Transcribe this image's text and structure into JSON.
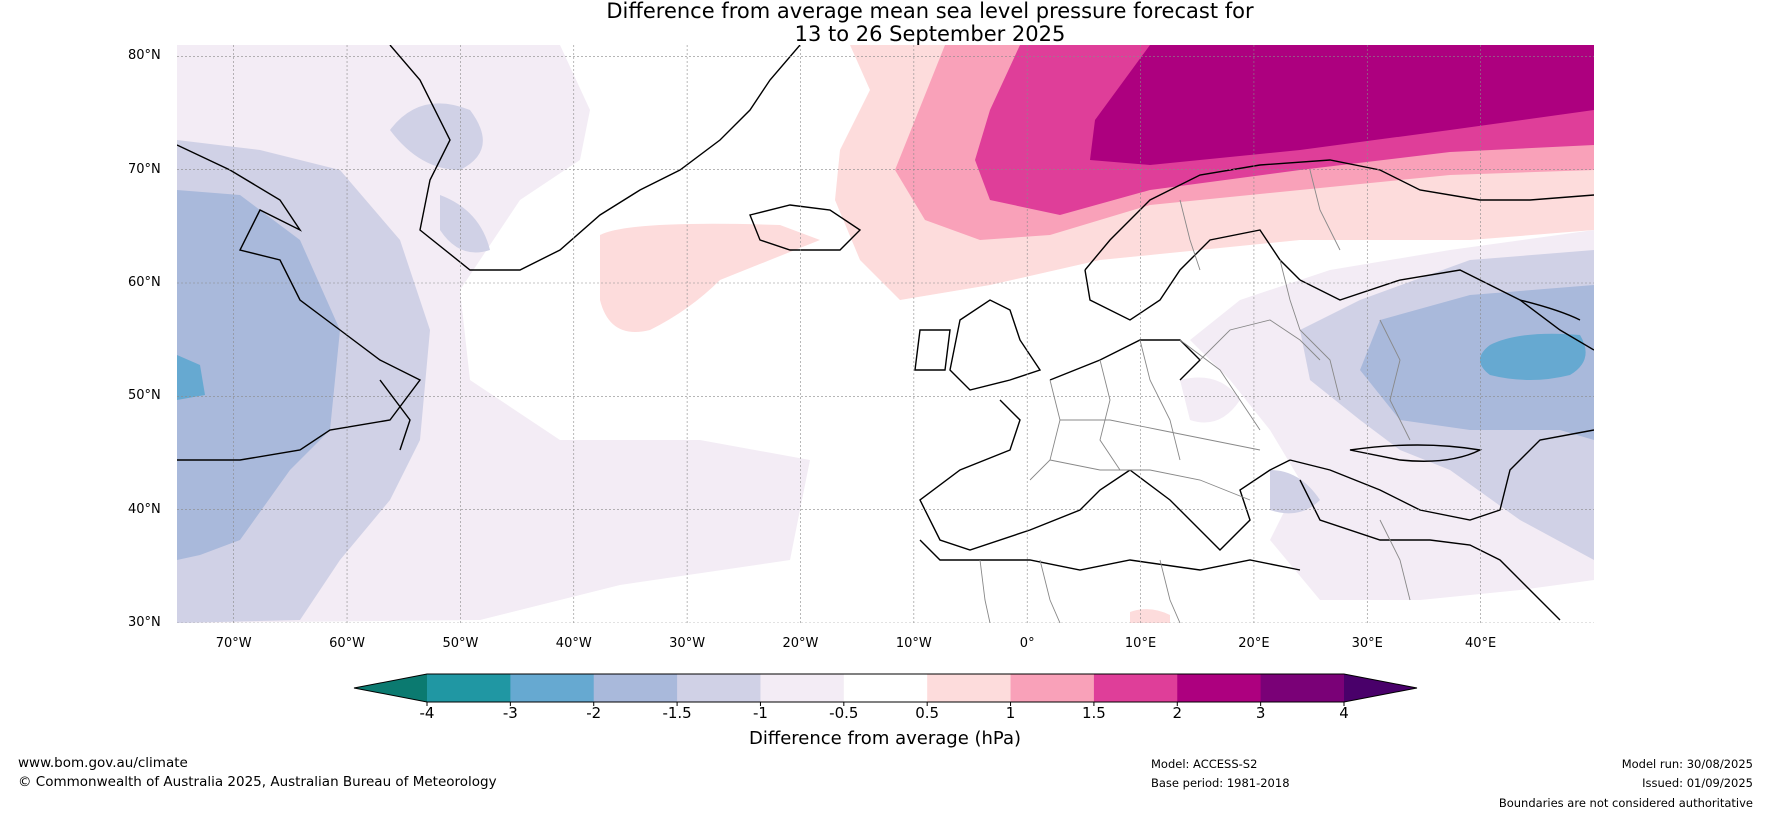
{
  "title": {
    "line1": "Difference from average mean sea level pressure forecast for",
    "line2": "13 to 26 September 2025"
  },
  "map": {
    "lat_labels": [
      "80°N",
      "70°N",
      "60°N",
      "50°N",
      "40°N",
      "30°N"
    ],
    "lon_labels": [
      "70°W",
      "60°W",
      "50°W",
      "40°W",
      "30°W",
      "20°W",
      "10°W",
      "0°",
      "10°E",
      "20°E",
      "30°E",
      "40°E"
    ],
    "lat_range": [
      30,
      81
    ],
    "lon_range": [
      -75,
      50
    ]
  },
  "colorbar": {
    "ticks": [
      "-4",
      "-3",
      "-2",
      "-1.5",
      "-1",
      "-0.5",
      "0.5",
      "1",
      "1.5",
      "2",
      "3",
      "4"
    ],
    "colors": [
      "#0b7a70",
      "#2097a3",
      "#66a9d1",
      "#a9b9db",
      "#d0d1e6",
      "#f3ecf5",
      "#ffffff",
      "#fddcdc",
      "#f9a1b9",
      "#df3e99",
      "#ad007f",
      "#7a0177",
      "#49006a"
    ],
    "label": "Difference from average (hPa)"
  },
  "footer": {
    "website": "www.bom.gov.au/climate",
    "copyright": "© Commonwealth of Australia 2025, Australian Bureau of Meteorology",
    "model": "Model: ACCESS-S2",
    "base_period": "Base period: 1981-2018",
    "model_run": "Model run: 30/08/2025",
    "issued": "Issued: 01/09/2025",
    "disclaimer": "Boundaries are not considered authoritative"
  }
}
